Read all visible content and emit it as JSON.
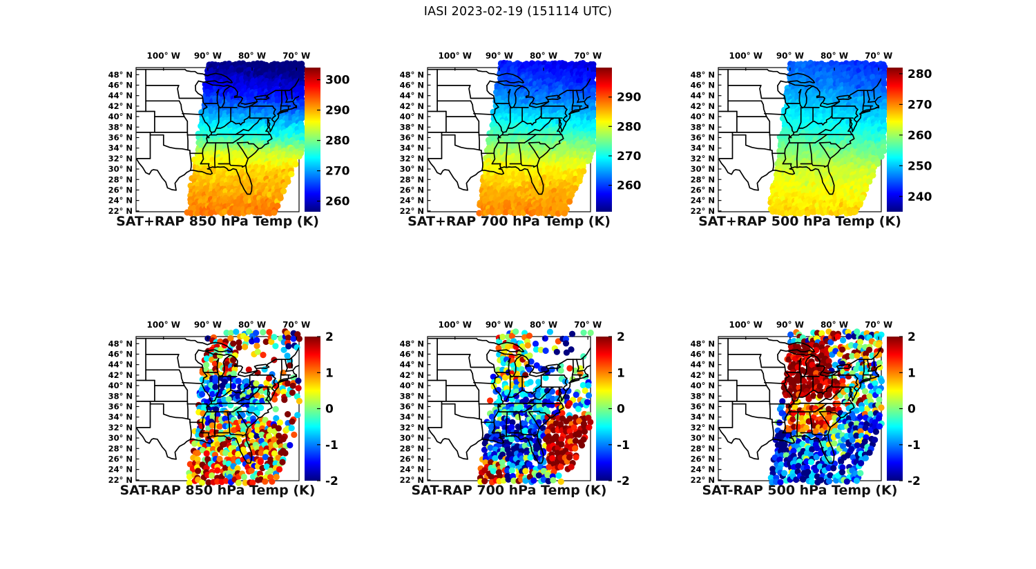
{
  "figure": {
    "title": "IASI 2023-02-19 (151114 UTC)"
  },
  "colors": {
    "background": "#ffffff",
    "outline": "#000000",
    "text": "#000000"
  },
  "axes": {
    "lon_tick_labels": [
      "100° W",
      "90° W",
      "80° W",
      "70° W"
    ],
    "lon_tick_values": [
      -100,
      -90,
      -80,
      -70
    ],
    "lat_tick_labels": [
      "48° N",
      "46° N",
      "44° N",
      "42° N",
      "40° N",
      "38° N",
      "36° N",
      "34° N",
      "32° N",
      "30° N",
      "28° N",
      "26° N",
      "24° N",
      "22° N"
    ],
    "lat_tick_values": [
      48,
      46,
      44,
      42,
      40,
      38,
      36,
      34,
      32,
      30,
      28,
      26,
      24,
      22
    ],
    "lon_range": [
      -106.2,
      -69.4
    ],
    "lat_range": [
      21.85,
      49.35
    ],
    "basemap": "US state boundaries"
  },
  "chart_data": {
    "type": "map-scatter",
    "colormap": "jet",
    "satellite": "IASI",
    "date": "2023-02-19",
    "time_utc": "151114",
    "swath": {
      "left_edge": {
        "lon_at_lat22": -94.7,
        "slope_lon_per_lat": 0.167
      },
      "right_edge": {
        "lon_at_lat22": -74.8,
        "slope_lon_per_lat": 0.52
      }
    },
    "panels": [
      {
        "title": "SAT+RAP 850 hPa Temp (K)",
        "row": 0,
        "col": 0,
        "kind": "field",
        "units": "K",
        "colorbar": {
          "min": 256.5,
          "max": 304,
          "tick_values": [
            260,
            270,
            280,
            290,
            300
          ]
        },
        "lat_profile": {
          "lats": [
            22,
            26,
            30,
            33,
            36,
            40,
            44,
            48,
            50
          ],
          "temps": [
            292,
            290,
            288,
            284,
            277,
            271,
            265,
            260,
            258
          ]
        },
        "noise_sd": 0.9
      },
      {
        "title": "SAT+RAP 700 hPa Temp (K)",
        "row": 0,
        "col": 1,
        "kind": "field",
        "units": "K",
        "colorbar": {
          "min": 251,
          "max": 300,
          "tick_values": [
            260,
            270,
            280,
            290
          ]
        },
        "lat_profile": {
          "lats": [
            22,
            26,
            30,
            34,
            38,
            42,
            46,
            50
          ],
          "temps": [
            287,
            285,
            282,
            277,
            271,
            266,
            262,
            259
          ]
        },
        "noise_sd": 0.8
      },
      {
        "title": "SAT+RAP 500 hPa Temp (K)",
        "row": 0,
        "col": 2,
        "kind": "field",
        "units": "K",
        "colorbar": {
          "min": 235,
          "max": 282,
          "tick_values": [
            240,
            250,
            260,
            270,
            280
          ]
        },
        "lat_profile": {
          "lats": [
            22,
            26,
            30,
            34,
            38,
            42,
            46,
            50
          ],
          "temps": [
            266,
            264,
            262,
            258,
            254,
            251,
            248,
            246
          ]
        },
        "noise_sd": 0.7
      },
      {
        "title": "SAT-RAP 850 hPa Temp (K)",
        "row": 1,
        "col": 0,
        "kind": "scatter",
        "units": "K",
        "colorbar": {
          "min": -2,
          "max": 2,
          "tick_values": [
            2,
            1,
            0,
            -1,
            -2
          ]
        },
        "regions": [
          {
            "lat": [
              21,
              51
            ],
            "lon": [
              -96,
              -60
            ],
            "mean": 0.0,
            "sd": 1.2,
            "density": 0.5
          },
          {
            "lat": [
              41.5,
              47.5
            ],
            "lon": [
              -93,
              -83.5
            ],
            "mean": 0.9,
            "sd": 1.1,
            "density": 0.95
          },
          {
            "lat": [
              47.5,
              50.5
            ],
            "lon": [
              -92,
              -68
            ],
            "mean": 0.3,
            "sd": 1.3,
            "density": 0.5
          },
          {
            "lat": [
              36,
              41.5
            ],
            "lon": [
              -92,
              -79
            ],
            "mean": -1.2,
            "sd": 0.8,
            "density": 0.92
          },
          {
            "lat": [
              33,
              36
            ],
            "lon": [
              -91,
              -77
            ],
            "mean": -1.0,
            "sd": 0.9,
            "density": 0.9
          },
          {
            "lat": [
              33,
              36.8
            ],
            "lon": [
              -95,
              -91
            ],
            "mean": 0.6,
            "sd": 1.0,
            "density": 0.9
          },
          {
            "lat": [
              28.5,
              33
            ],
            "lon": [
              -94,
              -74
            ],
            "mean": 0.5,
            "sd": 1.1,
            "density": 0.97
          },
          {
            "lat": [
              21,
              28.5
            ],
            "lon": [
              -96,
              -71
            ],
            "mean": 0.9,
            "sd": 1.1,
            "density": 0.97
          },
          {
            "lat": [
              21,
              25
            ],
            "lon": [
              -94,
              -86
            ],
            "mean": 1.6,
            "sd": 0.8,
            "density": 0.97
          },
          {
            "lat": [
              36,
              41
            ],
            "lon": [
              -77,
              -70
            ],
            "mean": 1.1,
            "sd": 1.0,
            "density": 0.7
          },
          {
            "lat": [
              33.5,
              36.3
            ],
            "lon": [
              -78,
              -72
            ],
            "mean": 0.3,
            "sd": 1.0,
            "density": 0.15
          },
          {
            "lat": [
              41,
              47
            ],
            "lon": [
              -83.5,
              -68.5
            ],
            "mean": 0.2,
            "sd": 1.3,
            "density": 0.16
          },
          {
            "lat": [
              46.5,
              50.5
            ],
            "lon": [
              -73,
              -68.5
            ],
            "mean": 0.5,
            "sd": 1.3,
            "density": 0.85
          }
        ]
      },
      {
        "title": "SAT-RAP 700 hPa Temp (K)",
        "row": 1,
        "col": 1,
        "kind": "scatter",
        "units": "K",
        "colorbar": {
          "min": -2,
          "max": 2,
          "tick_values": [
            2,
            1,
            0,
            -1,
            -2
          ]
        },
        "regions": [
          {
            "lat": [
              21,
              51
            ],
            "lon": [
              -96,
              -60
            ],
            "mean": -0.5,
            "sd": 1.0,
            "density": 0.5
          },
          {
            "lat": [
              40,
              50.5
            ],
            "lon": [
              -93,
              -83
            ],
            "mean": 0.2,
            "sd": 0.9,
            "density": 0.9
          },
          {
            "lat": [
              33,
              40
            ],
            "lon": [
              -91,
              -77.5
            ],
            "mean": -0.9,
            "sd": 0.7,
            "density": 0.92
          },
          {
            "lat": [
              21,
              33
            ],
            "lon": [
              -96,
              -79
            ],
            "mean": -1.3,
            "sd": 0.9,
            "density": 0.96
          },
          {
            "lat": [
              39,
              44
            ],
            "lon": [
              -84,
              -76.5
            ],
            "mean": -0.8,
            "sd": 0.9,
            "density": 0.3
          },
          {
            "lat": [
              44,
              50.5
            ],
            "lon": [
              -83,
              -68.5
            ],
            "mean": -0.9,
            "sd": 1.1,
            "density": 0.22
          },
          {
            "lat": [
              24,
              34
            ],
            "lon": [
              -79.5,
              -66
            ],
            "mean": 1.9,
            "sd": 0.5,
            "density": 1.0
          },
          {
            "lat": [
              21,
              26
            ],
            "lon": [
              -95,
              -88.5
            ],
            "mean": 1.4,
            "sd": 1.0,
            "density": 0.96
          },
          {
            "lat": [
              21,
              24
            ],
            "lon": [
              -88.5,
              -77
            ],
            "mean": -0.3,
            "sd": 1.3,
            "density": 0.96
          }
        ]
      },
      {
        "title": "SAT-RAP 500 hPa Temp (K)",
        "row": 1,
        "col": 2,
        "kind": "scatter",
        "units": "K",
        "colorbar": {
          "min": -2,
          "max": 2,
          "tick_values": [
            2,
            1,
            0,
            -1,
            -2
          ]
        },
        "regions": [
          {
            "lat": [
              21,
              51
            ],
            "lon": [
              -96,
              -60
            ],
            "mean": -0.5,
            "sd": 1.1,
            "density": 0.65
          },
          {
            "lat": [
              47.6,
              50.5
            ],
            "lon": [
              -92,
              -68.5
            ],
            "mean": 0.2,
            "sd": 1.3,
            "density": 0.85
          },
          {
            "lat": [
              38,
              47.8
            ],
            "lon": [
              -93.5,
              -81
            ],
            "mean": 2.0,
            "sd": 0.4,
            "density": 1.0
          },
          {
            "lat": [
              38,
              43
            ],
            "lon": [
              -81,
              -77.5
            ],
            "mean": 1.4,
            "sd": 0.8,
            "density": 0.9
          },
          {
            "lat": [
              31,
              38
            ],
            "lon": [
              -90.5,
              -79
            ],
            "mean": 1.3,
            "sd": 0.6,
            "density": 0.95
          },
          {
            "lat": [
              36.2,
              37.6
            ],
            "lon": [
              -88,
              -80
            ],
            "mean": 1.0,
            "sd": 0.7,
            "density": 0.3
          },
          {
            "lat": [
              21,
              31
            ],
            "lon": [
              -96,
              -68.5
            ],
            "mean": -1.3,
            "sd": 0.8,
            "density": 0.96
          },
          {
            "lat": [
              26,
              34.5
            ],
            "lon": [
              -79.5,
              -68
            ],
            "mean": -1.3,
            "sd": 0.9,
            "density": 0.92
          },
          {
            "lat": [
              34.5,
              38
            ],
            "lon": [
              -77,
              -68.5
            ],
            "mean": -0.2,
            "sd": 1.2,
            "density": 0.85
          },
          {
            "lat": [
              41,
              47.5
            ],
            "lon": [
              -81,
              -68.5
            ],
            "mean": 0.3,
            "sd": 1.2,
            "density": 0.7
          }
        ]
      }
    ]
  }
}
